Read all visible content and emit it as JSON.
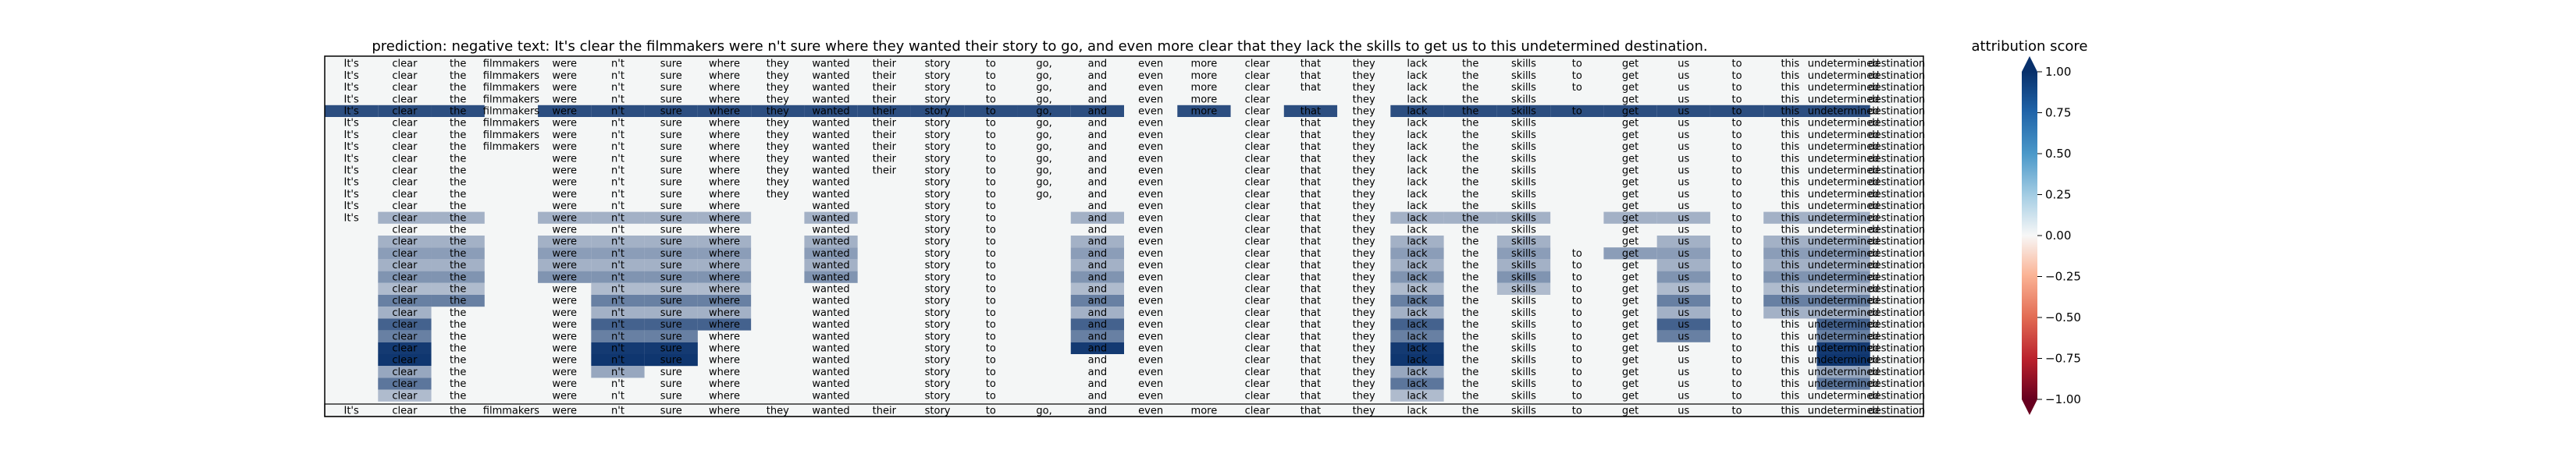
{
  "chart_data": {
    "type": "heatmap",
    "title": "prediction:  negative     text:  It's clear the filmmakers were n't sure where they wanted their story to go, and even more clear that they lack the skills to get us to this undetermined destination.",
    "tokens": [
      "It's",
      "clear",
      "the",
      "filmmakers",
      "were",
      "n't",
      "sure",
      "where",
      "they",
      "wanted",
      "their",
      "story",
      "to",
      "go,",
      "and",
      "even",
      "more",
      "clear",
      "that",
      "they",
      "lack",
      "the",
      "skills",
      "to",
      "get",
      "us",
      "to",
      "this",
      "undetermined",
      "destination"
    ],
    "row_masks": [
      "111111111111111111111111111111",
      "111111111111111111111111111111",
      "111111111111111111111111111111",
      "111111111111111111011110111111",
      "111111111111111111111111111111",
      "111111111111111101111110111111",
      "111111111111111101111110111111",
      "111111111111111101111110111111",
      "111011111111111101111110111111",
      "111011111111111101111110111111",
      "111011111101111101111110111111",
      "111011111101111101111110111111",
      "111011110101101101111110111111",
      "111011110101101101111110111111",
      "011011110101101101111110111111",
      "011011110101101101111110111111",
      "011011110101101101111111111111",
      "011011110101101101111111111111",
      "011011110101101101111111111111",
      "011011110101101101111111111111",
      "011011110101101101111111111111",
      "011011110101101101111111111111",
      "011011110101101101111111111111",
      "011011110101101101111111111111",
      "011011110101101101111111111111",
      "011011110101101101111111111111",
      "011011110101101101111111111111",
      "011011110101101101111111111111",
      "011011110101101101111111111111"
    ],
    "highlights": [
      {
        "row": 4,
        "tokens": [
          0,
          1,
          2,
          4,
          5,
          6,
          7,
          8,
          9,
          10,
          11,
          12,
          13,
          14,
          16,
          18,
          20,
          21,
          22,
          23,
          24,
          25,
          26,
          27,
          28
        ],
        "value": 0.85
      },
      {
        "row": 13,
        "tokens": [
          1,
          2,
          4,
          5,
          6,
          7,
          9,
          13,
          14,
          16,
          20,
          21,
          22,
          24,
          25,
          27,
          28
        ],
        "value": 0.35
      },
      {
        "row": 14,
        "tokens": [
          13
        ],
        "value": 0.35
      },
      {
        "row": 15,
        "tokens": [
          1,
          2,
          4,
          5,
          6,
          7,
          9,
          14,
          16,
          20,
          22,
          25,
          27,
          28
        ],
        "value": 0.35
      },
      {
        "row": 16,
        "tokens": [
          1,
          2,
          4,
          5,
          6,
          7,
          9,
          14,
          16,
          20,
          22,
          24,
          25,
          27,
          28
        ],
        "value": 0.45
      },
      {
        "row": 17,
        "tokens": [
          1,
          2,
          4,
          5,
          6,
          7,
          9,
          14,
          16,
          20,
          22,
          25,
          27,
          28
        ],
        "value": 0.35
      },
      {
        "row": 18,
        "tokens": [
          1,
          2,
          4,
          5,
          6,
          7,
          9,
          14,
          16,
          20,
          22,
          25,
          27,
          28
        ],
        "value": 0.5
      },
      {
        "row": 19,
        "tokens": [
          1,
          2,
          5,
          6,
          7,
          14,
          16,
          20,
          22,
          25,
          27,
          28
        ],
        "value": 0.3
      },
      {
        "row": 20,
        "tokens": [
          1,
          2,
          5,
          6,
          7,
          14,
          16,
          20,
          25,
          27,
          28
        ],
        "value": 0.6
      },
      {
        "row": 21,
        "tokens": [
          1,
          5,
          6,
          7,
          14,
          16,
          20,
          25,
          27,
          28
        ],
        "value": 0.35
      },
      {
        "row": 22,
        "tokens": [
          1,
          5,
          6,
          7,
          14,
          16,
          20,
          25,
          28
        ],
        "value": 0.75
      },
      {
        "row": 23,
        "tokens": [
          1,
          5,
          6,
          14,
          16,
          20,
          25,
          28
        ],
        "value": 0.6
      },
      {
        "row": 24,
        "tokens": [
          1,
          5,
          6,
          14,
          16,
          20,
          28
        ],
        "value": 0.95
      },
      {
        "row": 25,
        "tokens": [
          1,
          5,
          6,
          16,
          20,
          28
        ],
        "value": 0.97
      },
      {
        "row": 26,
        "tokens": [
          1,
          5,
          16,
          20,
          28
        ],
        "value": 0.4
      },
      {
        "row": 27,
        "tokens": [
          1,
          16,
          20,
          28
        ],
        "value": 0.65
      },
      {
        "row": 28,
        "tokens": [
          1,
          20
        ],
        "value": 0.3
      }
    ],
    "colorbar": {
      "label": "attribution score",
      "ticks": [
        "1.00",
        "0.75",
        "0.50",
        "0.25",
        "0.00",
        "−0.25",
        "−0.50",
        "−0.75",
        "−1.00"
      ],
      "range": [
        -1,
        1
      ]
    }
  }
}
